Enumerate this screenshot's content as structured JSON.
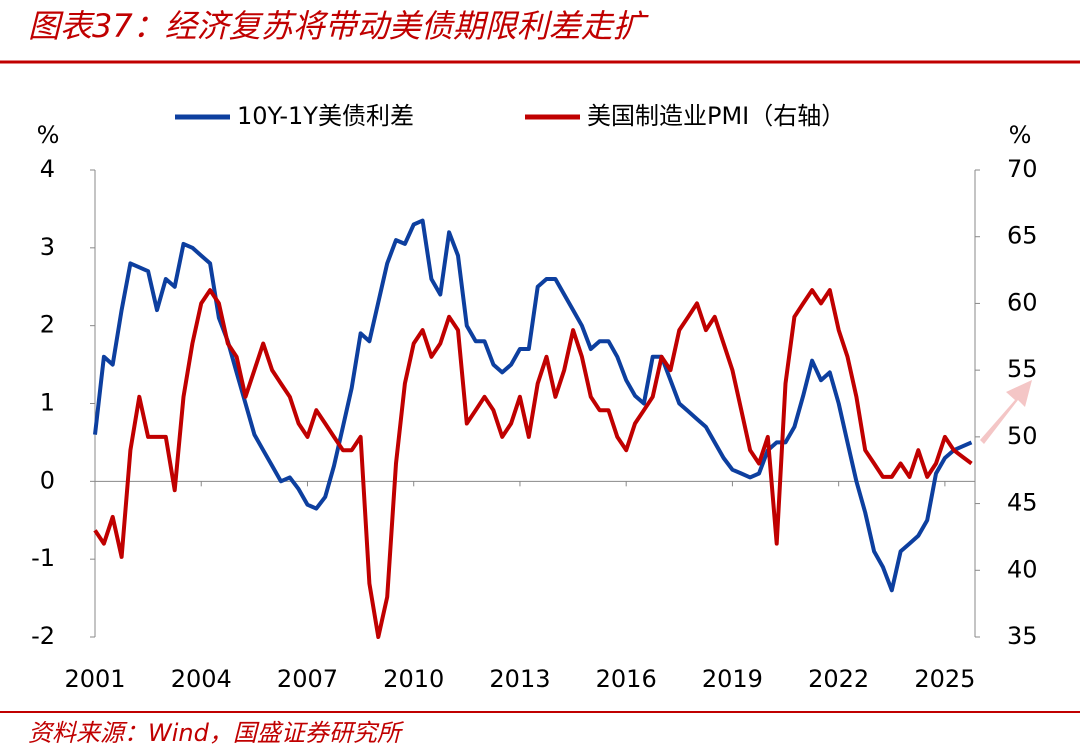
{
  "chart_data": {
    "type": "line",
    "title": "图表37：经济复苏将带动美债期限利差走扩",
    "source": "资料来源：Wind，国盛证券研究所",
    "y_label": "%",
    "y2_label": "%",
    "x": [
      2001,
      2001.25,
      2001.5,
      2001.75,
      2002,
      2002.25,
      2002.5,
      2002.75,
      2003,
      2003.25,
      2003.5,
      2003.75,
      2004,
      2004.25,
      2004.5,
      2004.75,
      2005,
      2005.25,
      2005.5,
      2005.75,
      2006,
      2006.25,
      2006.5,
      2006.75,
      2007,
      2007.25,
      2007.5,
      2007.75,
      2008,
      2008.25,
      2008.5,
      2008.75,
      2009,
      2009.25,
      2009.5,
      2009.75,
      2010,
      2010.25,
      2010.5,
      2010.75,
      2011,
      2011.25,
      2011.5,
      2011.75,
      2012,
      2012.25,
      2012.5,
      2012.75,
      2013,
      2013.25,
      2013.5,
      2013.75,
      2014,
      2014.25,
      2014.5,
      2014.75,
      2015,
      2015.25,
      2015.5,
      2015.75,
      2016,
      2016.25,
      2016.5,
      2016.75,
      2017,
      2017.25,
      2017.5,
      2017.75,
      2018,
      2018.25,
      2018.5,
      2018.75,
      2019,
      2019.25,
      2019.5,
      2019.75,
      2020,
      2020.25,
      2020.5,
      2020.75,
      2021,
      2021.25,
      2021.5,
      2021.75,
      2022,
      2022.25,
      2022.5,
      2022.75,
      2023,
      2023.25,
      2023.5,
      2023.75,
      2024,
      2024.25,
      2024.5,
      2024.75,
      2025,
      2025.25,
      2025.5,
      2025.75
    ],
    "series": [
      {
        "name": "10Y-1Y美债利差",
        "color": "#0d3f9f",
        "axis": "y",
        "values": [
          0.6,
          1.6,
          1.5,
          2.2,
          2.8,
          2.75,
          2.7,
          2.2,
          2.6,
          2.5,
          3.05,
          3.0,
          2.9,
          2.8,
          2.1,
          1.8,
          1.4,
          1.0,
          0.6,
          0.4,
          0.2,
          0.0,
          0.05,
          -0.1,
          -0.3,
          -0.35,
          -0.2,
          0.2,
          0.7,
          1.2,
          1.9,
          1.8,
          2.3,
          2.8,
          3.1,
          3.05,
          3.3,
          3.35,
          2.6,
          2.4,
          3.2,
          2.9,
          2.0,
          1.8,
          1.8,
          1.5,
          1.4,
          1.5,
          1.7,
          1.7,
          2.5,
          2.6,
          2.6,
          2.4,
          2.2,
          2.0,
          1.7,
          1.8,
          1.8,
          1.6,
          1.3,
          1.1,
          1.0,
          1.6,
          1.6,
          1.3,
          1.0,
          0.9,
          0.8,
          0.7,
          0.5,
          0.3,
          0.15,
          0.1,
          0.05,
          0.1,
          0.4,
          0.5,
          0.5,
          0.7,
          1.1,
          1.55,
          1.3,
          1.4,
          1.0,
          0.5,
          0.0,
          -0.4,
          -0.9,
          -1.1,
          -1.4,
          -0.9,
          -0.8,
          -0.7,
          -0.5,
          0.1,
          0.3,
          0.4,
          0.45,
          0.5
        ]
      },
      {
        "name": "美国制造业PMI（右轴）",
        "color": "#c00000",
        "axis": "y2",
        "values": [
          43,
          42,
          44,
          41,
          49,
          53,
          50,
          50,
          50,
          46,
          53,
          57,
          60,
          61,
          60,
          57,
          56,
          53,
          55,
          57,
          55,
          54,
          53,
          51,
          50,
          52,
          51,
          50,
          49,
          49,
          50,
          39,
          35,
          38,
          48,
          54,
          57,
          58,
          56,
          57,
          59,
          58,
          51,
          52,
          53,
          52,
          50,
          51,
          53,
          50,
          54,
          56,
          53,
          55,
          58,
          56,
          53,
          52,
          52,
          50,
          49,
          51,
          52,
          53,
          56,
          55,
          58,
          59,
          60,
          58,
          59,
          57,
          55,
          52,
          49,
          48,
          50,
          42,
          54,
          59,
          60,
          61,
          60,
          61,
          58,
          56,
          53,
          49,
          48,
          47,
          47,
          48,
          47,
          49,
          47,
          48,
          50,
          49,
          48.5,
          48
        ]
      }
    ],
    "xlim": [
      2001,
      2025.85
    ],
    "xticks": [
      2001,
      2004,
      2007,
      2010,
      2013,
      2016,
      2019,
      2022,
      2025
    ],
    "ylim": [
      -2,
      4
    ],
    "yticks": [
      -2,
      -1,
      0,
      1,
      2,
      3,
      4
    ],
    "y2lim": [
      35,
      70
    ],
    "y2ticks": [
      35,
      40,
      45,
      50,
      55,
      60,
      65,
      70
    ]
  }
}
